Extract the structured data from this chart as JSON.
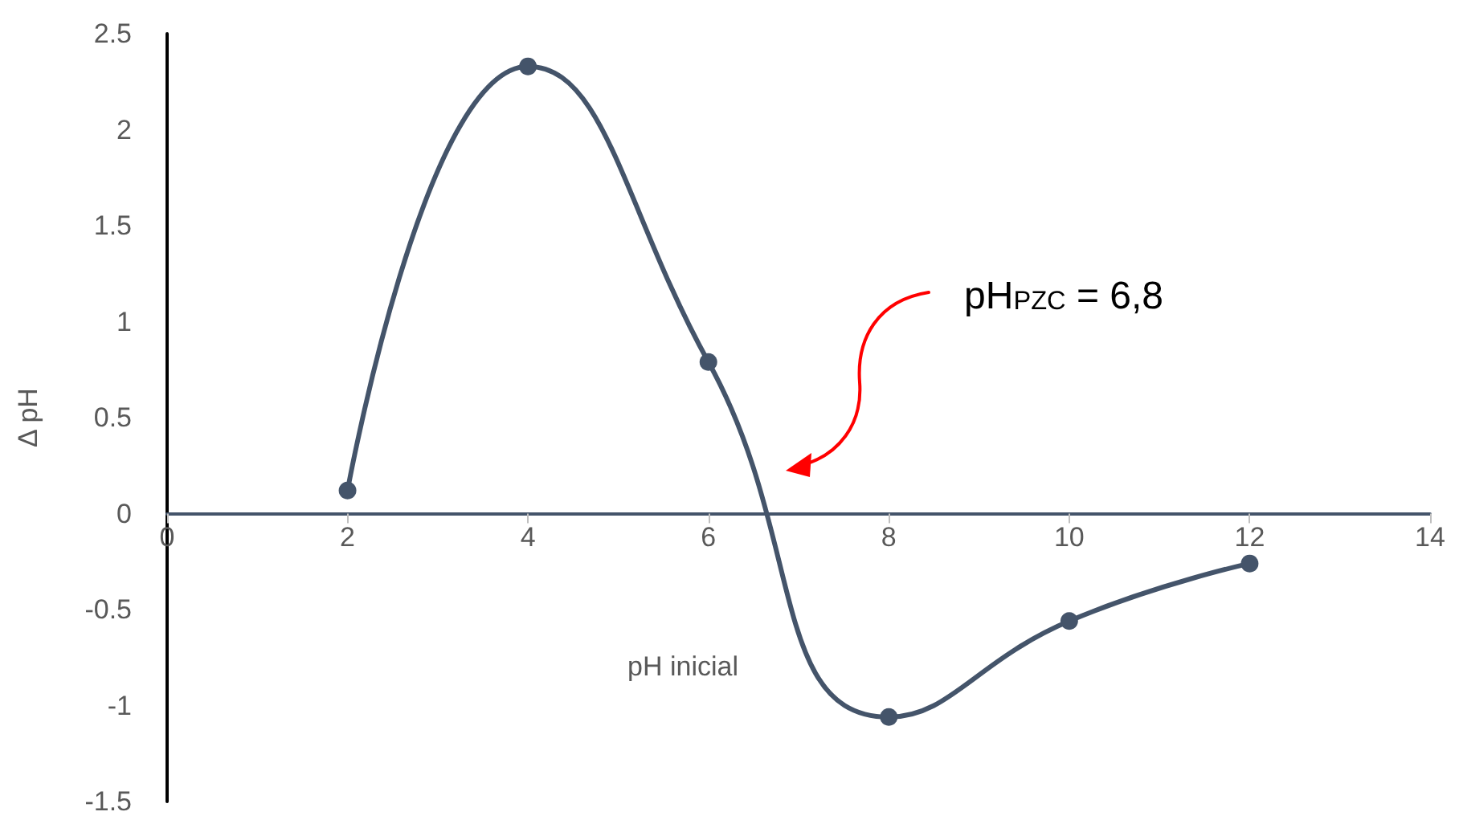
{
  "chart_data": {
    "type": "line",
    "xlabel": "pH inicial",
    "ylabel": "Δ pH",
    "x": [
      2,
      4,
      6,
      8,
      10,
      12
    ],
    "series": [
      {
        "color": "#44546a",
        "values": [
          0.12,
          2.33,
          0.79,
          -1.06,
          -0.56,
          -0.26
        ]
      }
    ],
    "xlim": [
      0,
      14
    ],
    "xticks": [
      0,
      2,
      4,
      6,
      8,
      10,
      12,
      14
    ],
    "ylim": [
      -1.5,
      2.5
    ],
    "yticks": [
      -1.5,
      -1,
      -0.5,
      0,
      0.5,
      1,
      1.5,
      2,
      2.5
    ],
    "marker": "circle",
    "line_style": "solid",
    "annotations": [
      "pH$_{PZC}$ = 6,8"
    ]
  }
}
